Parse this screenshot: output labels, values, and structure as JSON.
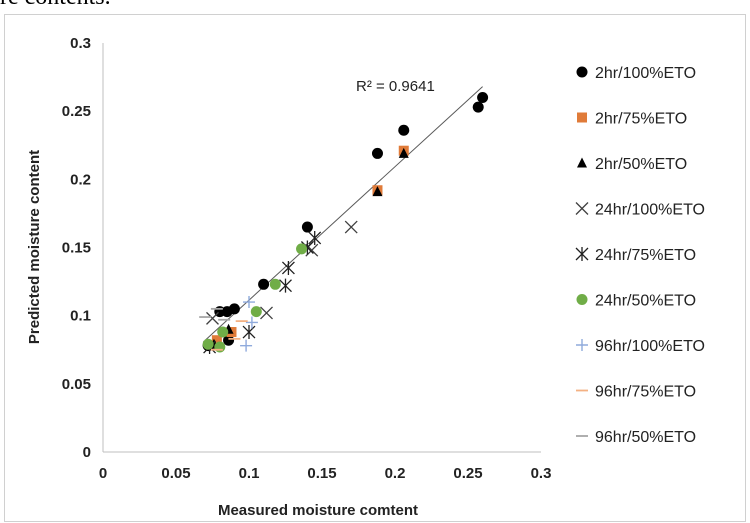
{
  "page": {
    "top_text": "re contents."
  },
  "chart_data": {
    "type": "scatter",
    "title": "",
    "xlabel": "Measured moisture comtent",
    "ylabel": "Predicted moisture content",
    "xlim": [
      0,
      0.3
    ],
    "ylim": [
      0,
      0.3
    ],
    "xticks": [
      "0",
      "0.05",
      "0.1",
      "0.15",
      "0.2",
      "0.25",
      "0.3"
    ],
    "yticks": [
      "0",
      "0.05",
      "0.1",
      "0.15",
      "0.2",
      "0.25",
      "0.3"
    ],
    "grid": false,
    "legend_position": "right",
    "annotation": "R² = 0.9641",
    "trendline": {
      "x": [
        0.07,
        0.26
      ],
      "y": [
        0.082,
        0.268
      ]
    },
    "series": [
      {
        "name": "2hr/100%ETO",
        "marker": "circle",
        "color": "#000000",
        "points": [
          [
            0.072,
            0.078
          ],
          [
            0.08,
            0.103
          ],
          [
            0.085,
            0.103
          ],
          [
            0.09,
            0.105
          ],
          [
            0.086,
            0.082
          ],
          [
            0.11,
            0.123
          ],
          [
            0.14,
            0.165
          ],
          [
            0.188,
            0.219
          ],
          [
            0.206,
            0.236
          ],
          [
            0.257,
            0.253
          ],
          [
            0.26,
            0.26
          ]
        ]
      },
      {
        "name": "2hr/75%ETO",
        "marker": "square",
        "color": "#E07B39",
        "points": [
          [
            0.078,
            0.082
          ],
          [
            0.088,
            0.088
          ],
          [
            0.188,
            0.192
          ],
          [
            0.206,
            0.221
          ]
        ]
      },
      {
        "name": "2hr/50%ETO",
        "marker": "triangle",
        "color": "#000000",
        "points": [
          [
            0.076,
            0.079
          ],
          [
            0.086,
            0.09
          ],
          [
            0.188,
            0.191
          ],
          [
            0.206,
            0.219
          ]
        ]
      },
      {
        "name": "24hr/100%ETO",
        "marker": "x",
        "color": "#404040",
        "points": [
          [
            0.075,
            0.098
          ],
          [
            0.112,
            0.102
          ],
          [
            0.143,
            0.148
          ],
          [
            0.17,
            0.165
          ]
        ]
      },
      {
        "name": "24hr/75%ETO",
        "marker": "asterisk",
        "color": "#202020",
        "points": [
          [
            0.073,
            0.077
          ],
          [
            0.1,
            0.088
          ],
          [
            0.125,
            0.122
          ],
          [
            0.127,
            0.135
          ],
          [
            0.14,
            0.15
          ],
          [
            0.145,
            0.157
          ]
        ]
      },
      {
        "name": "24hr/50%ETO",
        "marker": "circle",
        "color": "#70AD47",
        "points": [
          [
            0.072,
            0.079
          ],
          [
            0.08,
            0.077
          ],
          [
            0.082,
            0.088
          ],
          [
            0.105,
            0.103
          ],
          [
            0.118,
            0.123
          ],
          [
            0.136,
            0.149
          ]
        ]
      },
      {
        "name": "96hr/100%ETO",
        "marker": "plus",
        "color": "#8FAADC",
        "points": [
          [
            0.098,
            0.078
          ],
          [
            0.1,
            0.11
          ],
          [
            0.102,
            0.095
          ]
        ]
      },
      {
        "name": "96hr/75%ETO",
        "marker": "dash",
        "color": "#F4B183",
        "points": [
          [
            0.078,
            0.075
          ],
          [
            0.09,
            0.083
          ],
          [
            0.095,
            0.096
          ]
        ]
      },
      {
        "name": "96hr/50%ETO",
        "marker": "dash",
        "color": "#A6A6A6",
        "points": [
          [
            0.07,
            0.099
          ],
          [
            0.078,
            0.105
          ],
          [
            0.083,
            0.097
          ]
        ]
      }
    ]
  }
}
